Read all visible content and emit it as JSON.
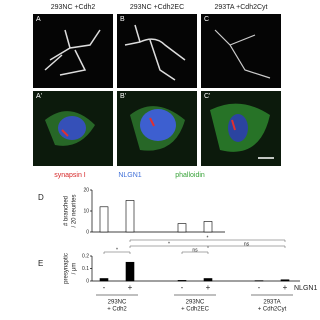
{
  "panels": {
    "row1": [
      {
        "letter": "A",
        "label": "293NC +Cdh2"
      },
      {
        "letter": "B",
        "label": "293NC +Cdh2EC"
      },
      {
        "letter": "C",
        "label": "293TA +Cdh2Cyt"
      }
    ],
    "row2": [
      "A'",
      "B'",
      "C'"
    ]
  },
  "stain_legend": [
    {
      "text": "synapsin I",
      "color": "#d62728"
    },
    {
      "text": "NLGN1",
      "color": "#3f6fd8"
    },
    {
      "text": "phalloidin",
      "color": "#39a33a"
    }
  ],
  "chart_data": [
    {
      "type": "bar",
      "title": "D",
      "y_label": [
        "# branched",
        "/ 20 neurites"
      ],
      "categories": [
        null,
        null,
        null,
        null
      ],
      "values": [
        12,
        15,
        4,
        5
      ],
      "color": "#ffffff",
      "ylim": [
        0,
        20
      ],
      "yticks": [
        0,
        10,
        20
      ]
    },
    {
      "type": "bar",
      "title": "E",
      "y_label": [
        "presynaptic",
        "/ μm"
      ],
      "categories": [
        "-",
        "+",
        "-",
        "+",
        "-",
        "+"
      ],
      "series_label": "NLGN1",
      "groups": [
        [
          "293NC",
          "+ Cdh2"
        ],
        [
          "293NC",
          "+ Cdh2EC"
        ],
        [
          "293TA",
          "+ Cdh2Cyt"
        ]
      ],
      "values": [
        0.02,
        0.15,
        0.005,
        0.02,
        0.003,
        0.01
      ],
      "color": "#000000",
      "ylim": [
        0,
        0.2
      ],
      "yticks": [
        0,
        0.1,
        0.2
      ],
      "annotations": [
        "*",
        "ns",
        "*",
        "ns",
        "*"
      ]
    }
  ]
}
